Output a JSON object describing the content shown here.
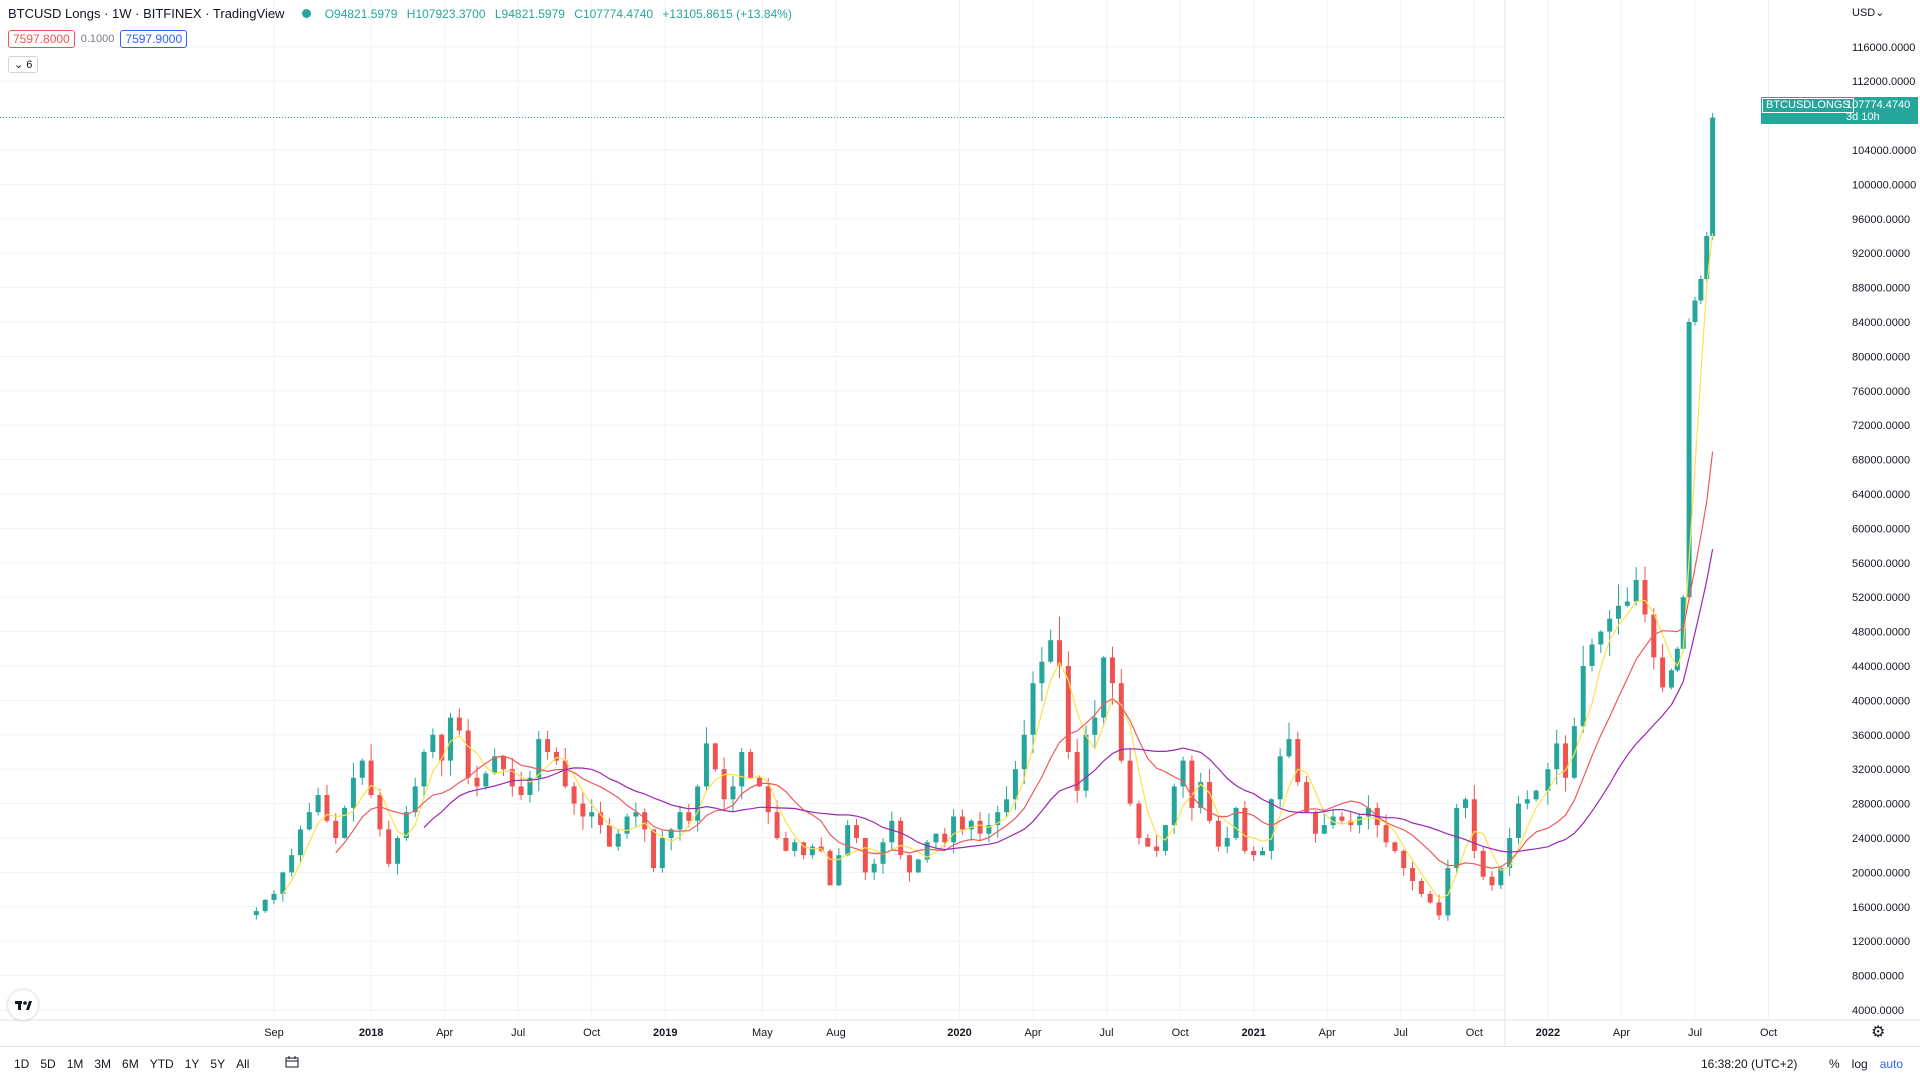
{
  "header": {
    "symbol": "BTCUSD Longs · 1W · BITFINEX · TradingView",
    "open": "O94821.5979",
    "high": "H107923.3700",
    "low": "L94821.5979",
    "close": "C107774.4740",
    "change": "+13105.8615 (+13.84%)"
  },
  "bid_ask": {
    "bid": "7597.8000",
    "spread": "0.1000",
    "ask": "7597.9000"
  },
  "indicator_toggle": "6",
  "currency": "USD",
  "price_tag": {
    "name": "BTCUSDLONGS",
    "value": "107774.4740",
    "countdown": "3d 10h"
  },
  "bottom_bar": {
    "ranges": [
      "1D",
      "5D",
      "1M",
      "3M",
      "6M",
      "YTD",
      "1Y",
      "5Y",
      "All"
    ],
    "clock": "16:38:20 (UTC+2)",
    "percent": "%",
    "log": "log",
    "auto": "auto"
  },
  "colors": {
    "up": "#26a69a",
    "down": "#ef5350",
    "ma_fast": "#fbe24b",
    "ma_mid": "#f05a5a",
    "ma_slow": "#9c27b0",
    "grid": "#f0f3fa"
  },
  "chart_data": {
    "type": "candlestick",
    "title": "",
    "xlabel": "",
    "ylabel": "",
    "ylim": [
      0,
      118000
    ],
    "y_ticks": [
      4000,
      8000,
      12000,
      16000,
      20000,
      24000,
      28000,
      32000,
      36000,
      40000,
      44000,
      48000,
      52000,
      56000,
      60000,
      64000,
      68000,
      72000,
      76000,
      80000,
      84000,
      88000,
      92000,
      96000,
      100000,
      104000,
      112000,
      116000
    ],
    "y_tick_labels": [
      "4000.0000",
      "8000.0000",
      "12000.0000",
      "16000.0000",
      "20000.0000",
      "24000.0000",
      "28000.0000",
      "32000.0000",
      "36000.0000",
      "40000.0000",
      "44000.0000",
      "48000.0000",
      "52000.0000",
      "56000.0000",
      "60000.0000",
      "64000.0000",
      "68000.0000",
      "72000.0000",
      "76000.0000",
      "80000.0000",
      "84000.0000",
      "88000.0000",
      "92000.0000",
      "96000.0000",
      "100000.0000",
      "104000.0000",
      "112000.0000",
      "116000.0000"
    ],
    "x_ticks": [
      {
        "label": "Sep",
        "year": 2017.67,
        "bold": false
      },
      {
        "label": "2018",
        "year": 2018.0,
        "bold": true
      },
      {
        "label": "Apr",
        "year": 2018.25,
        "bold": false
      },
      {
        "label": "Jul",
        "year": 2018.5,
        "bold": false
      },
      {
        "label": "Oct",
        "year": 2018.75,
        "bold": false
      },
      {
        "label": "2019",
        "year": 2019.0,
        "bold": true
      },
      {
        "label": "May",
        "year": 2019.33,
        "bold": false
      },
      {
        "label": "Aug",
        "year": 2019.58,
        "bold": false
      },
      {
        "label": "2020",
        "year": 2020.0,
        "bold": true
      },
      {
        "label": "Apr",
        "year": 2020.25,
        "bold": false
      },
      {
        "label": "Jul",
        "year": 2020.5,
        "bold": false
      },
      {
        "label": "Oct",
        "year": 2020.75,
        "bold": false
      },
      {
        "label": "2021",
        "year": 2021.0,
        "bold": true
      },
      {
        "label": "Apr",
        "year": 2021.25,
        "bold": false
      },
      {
        "label": "Jul",
        "year": 2021.5,
        "bold": false
      },
      {
        "label": "Oct",
        "year": 2021.75,
        "bold": false
      },
      {
        "label": "2022",
        "year": 2022.0,
        "bold": true
      },
      {
        "label": "Apr",
        "year": 2022.25,
        "bold": false
      },
      {
        "label": "Jul",
        "year": 2022.5,
        "bold": false
      },
      {
        "label": "Oct",
        "year": 2022.75,
        "bold": false
      }
    ],
    "last_price": 107774.474,
    "candles": [],
    "moving_averages": [
      {
        "name": "",
        "color": "#fbe24b",
        "period": 4
      },
      {
        "name": "",
        "color": "#f05a5a",
        "period": 10
      },
      {
        "name": "",
        "color": "#9c27b0",
        "period": 20
      }
    ],
    "close_path": [
      [
        2017.61,
        15500
      ],
      [
        2017.64,
        16800
      ],
      [
        2017.67,
        17500
      ],
      [
        2017.7,
        20000
      ],
      [
        2017.73,
        22000
      ],
      [
        2017.76,
        25000
      ],
      [
        2017.79,
        27000
      ],
      [
        2017.82,
        29000
      ],
      [
        2017.85,
        26000
      ],
      [
        2017.88,
        24000
      ],
      [
        2017.91,
        27500
      ],
      [
        2017.94,
        31000
      ],
      [
        2017.97,
        33000
      ],
      [
        2018.0,
        29000
      ],
      [
        2018.03,
        25000
      ],
      [
        2018.06,
        21000
      ],
      [
        2018.09,
        24000
      ],
      [
        2018.12,
        27000
      ],
      [
        2018.15,
        30000
      ],
      [
        2018.18,
        34000
      ],
      [
        2018.21,
        36000
      ],
      [
        2018.24,
        33000
      ],
      [
        2018.27,
        38000
      ],
      [
        2018.3,
        36500
      ],
      [
        2018.33,
        31000
      ],
      [
        2018.36,
        30000
      ],
      [
        2018.39,
        31500
      ],
      [
        2018.42,
        33500
      ],
      [
        2018.45,
        32000
      ],
      [
        2018.48,
        30000
      ],
      [
        2018.51,
        29000
      ],
      [
        2018.54,
        31000
      ],
      [
        2018.57,
        35500
      ],
      [
        2018.6,
        34000
      ],
      [
        2018.63,
        33000
      ],
      [
        2018.66,
        30000
      ],
      [
        2018.69,
        28000
      ],
      [
        2018.72,
        26500
      ],
      [
        2018.75,
        27000
      ],
      [
        2018.78,
        25500
      ],
      [
        2018.81,
        23000
      ],
      [
        2018.84,
        24500
      ],
      [
        2018.87,
        26500
      ],
      [
        2018.9,
        27000
      ],
      [
        2018.93,
        25000
      ],
      [
        2018.96,
        20500
      ],
      [
        2018.99,
        24000
      ],
      [
        2019.02,
        25000
      ],
      [
        2019.05,
        27000
      ],
      [
        2019.08,
        26000
      ],
      [
        2019.11,
        30000
      ],
      [
        2019.14,
        35000
      ],
      [
        2019.17,
        32000
      ],
      [
        2019.2,
        28500
      ],
      [
        2019.23,
        30000
      ],
      [
        2019.26,
        34000
      ],
      [
        2019.29,
        31000
      ],
      [
        2019.32,
        30000
      ],
      [
        2019.35,
        27000
      ],
      [
        2019.38,
        24000
      ],
      [
        2019.41,
        22500
      ],
      [
        2019.44,
        23500
      ],
      [
        2019.47,
        22000
      ],
      [
        2019.5,
        23000
      ],
      [
        2019.53,
        22500
      ],
      [
        2019.56,
        18500
      ],
      [
        2019.59,
        22000
      ],
      [
        2019.62,
        25500
      ],
      [
        2019.65,
        24000
      ],
      [
        2019.68,
        20000
      ],
      [
        2019.71,
        21000
      ],
      [
        2019.74,
        23500
      ],
      [
        2019.77,
        26000
      ],
      [
        2019.8,
        22000
      ],
      [
        2019.83,
        20000
      ],
      [
        2019.86,
        21500
      ],
      [
        2019.89,
        23500
      ],
      [
        2019.92,
        24500
      ],
      [
        2019.95,
        23500
      ],
      [
        2019.98,
        26500
      ],
      [
        2020.01,
        25000
      ],
      [
        2020.04,
        26000
      ],
      [
        2020.07,
        24500
      ],
      [
        2020.1,
        25500
      ],
      [
        2020.13,
        27000
      ],
      [
        2020.16,
        28500
      ],
      [
        2020.19,
        32000
      ],
      [
        2020.22,
        36000
      ],
      [
        2020.25,
        42000
      ],
      [
        2020.28,
        44500
      ],
      [
        2020.31,
        47000
      ],
      [
        2020.34,
        44000
      ],
      [
        2020.37,
        34000
      ],
      [
        2020.4,
        29500
      ],
      [
        2020.43,
        36000
      ],
      [
        2020.46,
        38000
      ],
      [
        2020.49,
        45000
      ],
      [
        2020.52,
        42000
      ],
      [
        2020.55,
        33000
      ],
      [
        2020.58,
        28000
      ],
      [
        2020.61,
        24000
      ],
      [
        2020.64,
        23000
      ],
      [
        2020.67,
        22500
      ],
      [
        2020.7,
        25500
      ],
      [
        2020.73,
        30000
      ],
      [
        2020.76,
        33000
      ],
      [
        2020.79,
        27500
      ],
      [
        2020.82,
        30500
      ],
      [
        2020.85,
        26000
      ],
      [
        2020.88,
        23000
      ],
      [
        2020.91,
        24000
      ],
      [
        2020.94,
        27500
      ],
      [
        2020.97,
        22500
      ],
      [
        2021.0,
        22000
      ],
      [
        2021.03,
        22500
      ],
      [
        2021.06,
        28500
      ],
      [
        2021.09,
        33500
      ],
      [
        2021.12,
        35500
      ],
      [
        2021.15,
        30500
      ],
      [
        2021.18,
        27000
      ],
      [
        2021.21,
        24500
      ],
      [
        2021.24,
        25500
      ],
      [
        2021.27,
        26500
      ],
      [
        2021.3,
        26000
      ],
      [
        2021.33,
        25500
      ],
      [
        2021.36,
        26500
      ],
      [
        2021.39,
        27500
      ],
      [
        2021.42,
        25500
      ],
      [
        2021.45,
        23500
      ],
      [
        2021.48,
        22500
      ],
      [
        2021.51,
        20500
      ],
      [
        2021.54,
        19000
      ],
      [
        2021.57,
        17500
      ],
      [
        2021.6,
        16500
      ],
      [
        2021.63,
        15000
      ],
      [
        2021.66,
        20500
      ],
      [
        2021.69,
        27500
      ],
      [
        2021.72,
        28500
      ],
      [
        2021.75,
        22500
      ],
      [
        2021.78,
        19500
      ],
      [
        2021.81,
        18500
      ],
      [
        2021.84,
        20500
      ],
      [
        2021.87,
        24000
      ],
      [
        2021.9,
        28000
      ],
      [
        2021.93,
        28500
      ],
      [
        2021.96,
        29500
      ],
      [
        2022.0,
        32000
      ],
      [
        2022.03,
        35000
      ],
      [
        2022.06,
        31000
      ],
      [
        2022.09,
        37000
      ],
      [
        2022.12,
        44000
      ],
      [
        2022.15,
        46500
      ],
      [
        2022.18,
        48000
      ],
      [
        2022.21,
        49500
      ],
      [
        2022.24,
        51000
      ],
      [
        2022.27,
        51500
      ],
      [
        2022.3,
        54000
      ],
      [
        2022.33,
        50000
      ],
      [
        2022.36,
        45000
      ],
      [
        2022.39,
        41500
      ]
    ]
  }
}
